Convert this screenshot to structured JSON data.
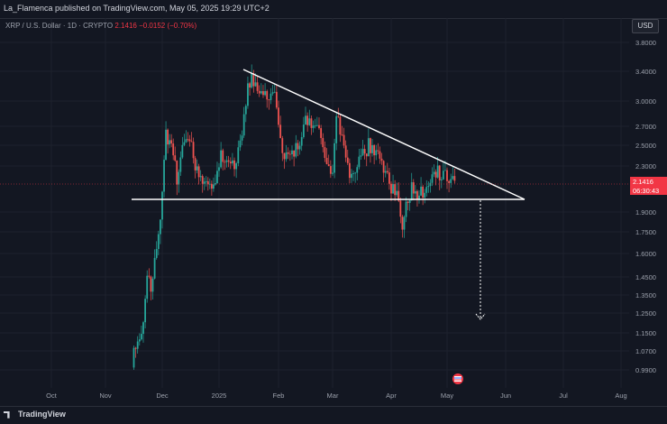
{
  "header": {
    "published_text": "La_Flamenca published on TradingView.com, May 05, 2025 19:29 UTC+2"
  },
  "legend": {
    "symbol": "XRP / U.S. Dollar · 1D · CRYPTO",
    "last": "2.1416",
    "change": "−0.0152 (−0.70%)"
  },
  "price_axis": {
    "currency": "USD",
    "ticks": [
      "3.8000",
      "3.4000",
      "3.0000",
      "2.7000",
      "2.5000",
      "2.3000",
      "1.9000",
      "1.7500",
      "1.6000",
      "1.4500",
      "1.3500",
      "1.2500",
      "1.1500",
      "1.0700",
      "0.9900"
    ],
    "current_price": "2.1416",
    "countdown": "06:30:43"
  },
  "time_axis": {
    "labels": [
      "Oct",
      "Nov",
      "Dec",
      "2025",
      "Feb",
      "Mar",
      "Apr",
      "May",
      "Jun",
      "Jul",
      "Aug"
    ]
  },
  "footer": {
    "brand": "TradingView"
  },
  "colors": {
    "up": "#26a69a",
    "down": "#ef5350",
    "background": "#131722",
    "drawing": "#ffffff",
    "price_line": "#f23645"
  },
  "chart_data": {
    "type": "candlestick",
    "symbol": "XRPUSD",
    "timeframe": "1D",
    "y_range": [
      0.95,
      3.9
    ],
    "candles": [
      {
        "date": "2024-11-16",
        "close": 1.1
      },
      {
        "date": "2024-11-20",
        "close": 1.12
      },
      {
        "date": "2024-11-23",
        "close": 1.45
      },
      {
        "date": "2024-11-25",
        "close": 1.4
      },
      {
        "date": "2024-11-28",
        "close": 1.6
      },
      {
        "date": "2024-11-30",
        "close": 1.9
      },
      {
        "date": "2024-12-03",
        "close": 2.6
      },
      {
        "date": "2024-12-06",
        "close": 2.5
      },
      {
        "date": "2024-12-09",
        "close": 2.2
      },
      {
        "date": "2024-12-12",
        "close": 2.45
      },
      {
        "date": "2024-12-16",
        "close": 2.55
      },
      {
        "date": "2024-12-19",
        "close": 2.3
      },
      {
        "date": "2024-12-22",
        "close": 2.2
      },
      {
        "date": "2024-12-26",
        "close": 2.15
      },
      {
        "date": "2024-12-30",
        "close": 2.1
      },
      {
        "date": "2025-01-02",
        "close": 2.4
      },
      {
        "date": "2025-01-06",
        "close": 2.35
      },
      {
        "date": "2025-01-09",
        "close": 2.3
      },
      {
        "date": "2025-01-13",
        "close": 2.6
      },
      {
        "date": "2025-01-16",
        "close": 3.2
      },
      {
        "date": "2025-01-18",
        "close": 3.3
      },
      {
        "date": "2025-01-21",
        "close": 3.1
      },
      {
        "date": "2025-01-24",
        "close": 3.05
      },
      {
        "date": "2025-01-27",
        "close": 3.1
      },
      {
        "date": "2025-01-30",
        "close": 3.05
      },
      {
        "date": "2025-02-02",
        "close": 2.5
      },
      {
        "date": "2025-02-05",
        "close": 2.4
      },
      {
        "date": "2025-02-08",
        "close": 2.45
      },
      {
        "date": "2025-02-12",
        "close": 2.5
      },
      {
        "date": "2025-02-15",
        "close": 2.75
      },
      {
        "date": "2025-02-19",
        "close": 2.7
      },
      {
        "date": "2025-02-23",
        "close": 2.6
      },
      {
        "date": "2025-02-26",
        "close": 2.25
      },
      {
        "date": "2025-03-01",
        "close": 2.2
      },
      {
        "date": "2025-03-03",
        "close": 2.85
      },
      {
        "date": "2025-03-06",
        "close": 2.55
      },
      {
        "date": "2025-03-10",
        "close": 2.2
      },
      {
        "date": "2025-03-13",
        "close": 2.3
      },
      {
        "date": "2025-03-17",
        "close": 2.4
      },
      {
        "date": "2025-03-20",
        "close": 2.5
      },
      {
        "date": "2025-03-24",
        "close": 2.45
      },
      {
        "date": "2025-03-28",
        "close": 2.3
      },
      {
        "date": "2025-04-01",
        "close": 2.1
      },
      {
        "date": "2025-04-04",
        "close": 2.05
      },
      {
        "date": "2025-04-07",
        "close": 1.8
      },
      {
        "date": "2025-04-09",
        "close": 2.0
      },
      {
        "date": "2025-04-12",
        "close": 2.1
      },
      {
        "date": "2025-04-16",
        "close": 2.05
      },
      {
        "date": "2025-04-20",
        "close": 2.1
      },
      {
        "date": "2025-04-23",
        "close": 2.2
      },
      {
        "date": "2025-04-26",
        "close": 2.25
      },
      {
        "date": "2025-04-29",
        "close": 2.2
      },
      {
        "date": "2025-05-02",
        "close": 2.2
      },
      {
        "date": "2025-05-05",
        "close": 2.1416
      }
    ],
    "annotations": [
      {
        "type": "descending-trendline",
        "from": {
          "date": "2025-01-16",
          "price": 3.4
        },
        "to": {
          "date": "2025-05-29",
          "price": 2.02
        }
      },
      {
        "type": "support-line",
        "price": 2.02,
        "from": "2024-11-28",
        "to": "2025-05-29"
      },
      {
        "type": "dotted-projection-arrow",
        "date": "2025-05-19",
        "from": 2.02,
        "to": 1.24
      }
    ]
  }
}
